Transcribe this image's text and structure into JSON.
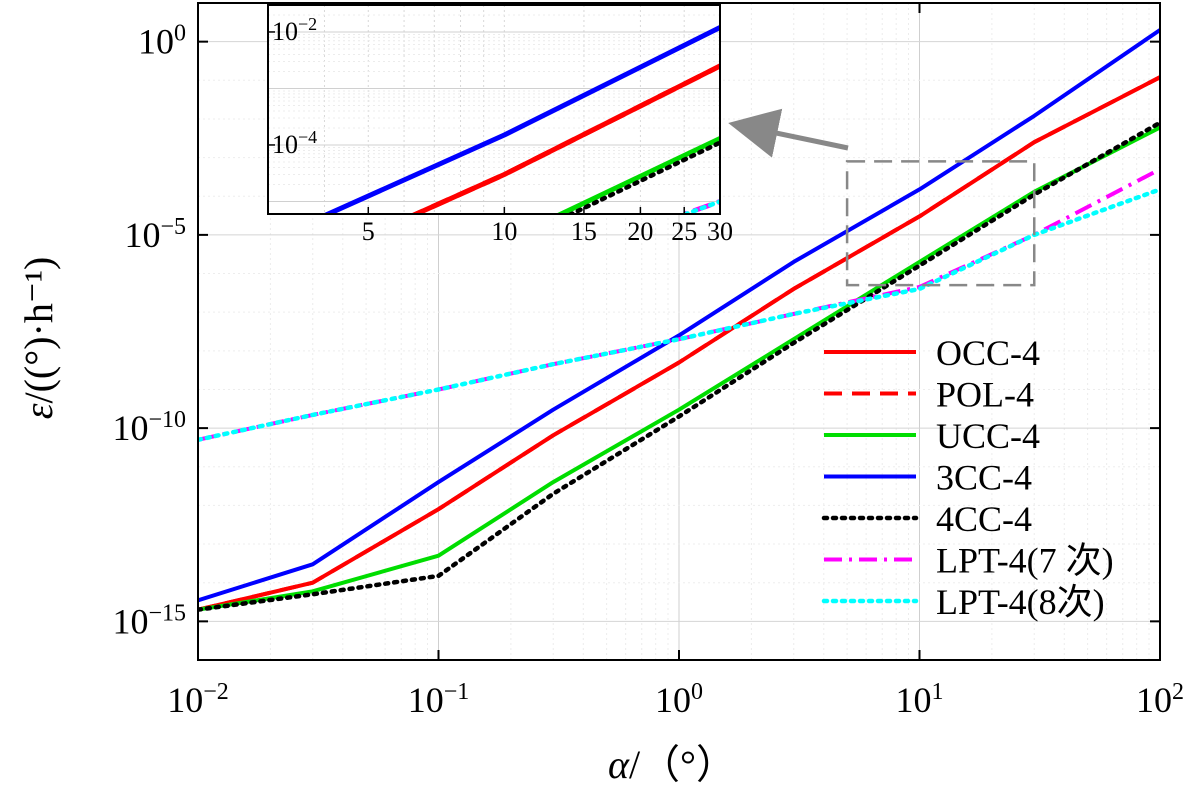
{
  "chart_data": {
    "type": "line",
    "xscale": "log",
    "yscale": "log",
    "xlim": [
      0.01,
      100
    ],
    "ylim": [
      1e-16,
      10
    ],
    "xlabel": {
      "main": "α",
      "unit": "/（°）"
    },
    "ylabel": {
      "main": "ε",
      "unit": "/((°)·h⁻¹)"
    },
    "x_ticks": [
      {
        "value": 0.01,
        "base": "10",
        "exp": "−2"
      },
      {
        "value": 0.1,
        "base": "10",
        "exp": "−1"
      },
      {
        "value": 1,
        "base": "10",
        "exp": "0"
      },
      {
        "value": 10,
        "base": "10",
        "exp": "1"
      },
      {
        "value": 100,
        "base": "10",
        "exp": "2"
      }
    ],
    "y_ticks": [
      {
        "value": 1e-15,
        "base": "10",
        "exp": "−15"
      },
      {
        "value": 1e-10,
        "base": "10",
        "exp": "−10"
      },
      {
        "value": 1e-05,
        "base": "10",
        "exp": "−5"
      },
      {
        "value": 1,
        "base": "10",
        "exp": "0"
      }
    ],
    "grid": true,
    "legend_position": "bottom-right",
    "series": [
      {
        "name": "OCC-4",
        "color": "#ff0000",
        "dash": "solid",
        "x": [
          0.01,
          0.03,
          0.1,
          0.3,
          1,
          3,
          10,
          30,
          100
        ],
        "y": [
          2e-15,
          1e-14,
          8e-13,
          6.5e-11,
          5e-09,
          4e-07,
          3e-05,
          0.0025,
          0.12
        ]
      },
      {
        "name": "POL-4",
        "color": "#ff0000",
        "dash": "dashed",
        "x": [
          0.01,
          0.03,
          0.1,
          0.3,
          1,
          3,
          10,
          30,
          100
        ],
        "y": [
          2e-15,
          1e-14,
          8e-13,
          6.5e-11,
          5e-09,
          4e-07,
          3e-05,
          0.0025,
          0.12
        ]
      },
      {
        "name": "UCC-4",
        "color": "#00dd00",
        "dash": "solid",
        "x": [
          0.01,
          0.03,
          0.1,
          0.3,
          1,
          3,
          10,
          30,
          100
        ],
        "y": [
          2e-15,
          6e-15,
          5e-14,
          4e-12,
          3e-10,
          2e-08,
          2e-06,
          0.00013,
          0.006
        ]
      },
      {
        "name": "3CC-4",
        "color": "#0000ff",
        "dash": "solid",
        "x": [
          0.01,
          0.03,
          0.1,
          0.3,
          1,
          3,
          10,
          30,
          100
        ],
        "y": [
          3.5e-15,
          3e-14,
          4e-12,
          3e-10,
          2.5e-08,
          2e-06,
          0.00015,
          0.012,
          2.0
        ]
      },
      {
        "name": "4CC-4",
        "color": "#000000",
        "dash": "dotted",
        "x": [
          0.01,
          0.03,
          0.1,
          0.3,
          1,
          3,
          10,
          30,
          100
        ],
        "y": [
          2e-15,
          5e-15,
          1.5e-14,
          2e-12,
          2e-10,
          1.6e-08,
          1.6e-06,
          0.00011,
          0.008
        ]
      },
      {
        "name": "LPT-4(7 次)",
        "color": "#ff00ff",
        "dash": "dashdot",
        "x": [
          0.01,
          0.03,
          0.1,
          0.3,
          1,
          3,
          10,
          30,
          100
        ],
        "y": [
          5e-11,
          2.2e-10,
          1e-09,
          4.5e-09,
          2e-08,
          9e-08,
          4.5e-07,
          1e-05,
          0.0005
        ]
      },
      {
        "name": "LPT-4(8次)",
        "color": "#00ffff",
        "dash": "dotted",
        "x": [
          0.01,
          0.03,
          0.1,
          0.3,
          1,
          3,
          10,
          30,
          100
        ],
        "y": [
          5e-11,
          2.2e-10,
          1e-09,
          4.5e-09,
          2e-08,
          9e-08,
          4e-07,
          1e-05,
          0.00015
        ]
      }
    ],
    "inset": {
      "xlim": [
        3,
        30
      ],
      "ylim": [
        6e-06,
        0.03
      ],
      "x_ticks": [
        {
          "value": 5,
          "label": "5"
        },
        {
          "value": 10,
          "label": "10"
        },
        {
          "value": 15,
          "label": "15"
        },
        {
          "value": 20,
          "label": "20"
        },
        {
          "value": 25,
          "label": "25"
        },
        {
          "value": 30,
          "label": "30"
        }
      ],
      "y_ticks": [
        {
          "value": 0.0001,
          "base": "10",
          "exp": "−4"
        },
        {
          "value": 0.01,
          "base": "10",
          "exp": "−2"
        }
      ],
      "zoom_box": {
        "xlim": [
          5,
          30
        ],
        "ylim": [
          5e-07,
          0.0008
        ]
      }
    }
  }
}
